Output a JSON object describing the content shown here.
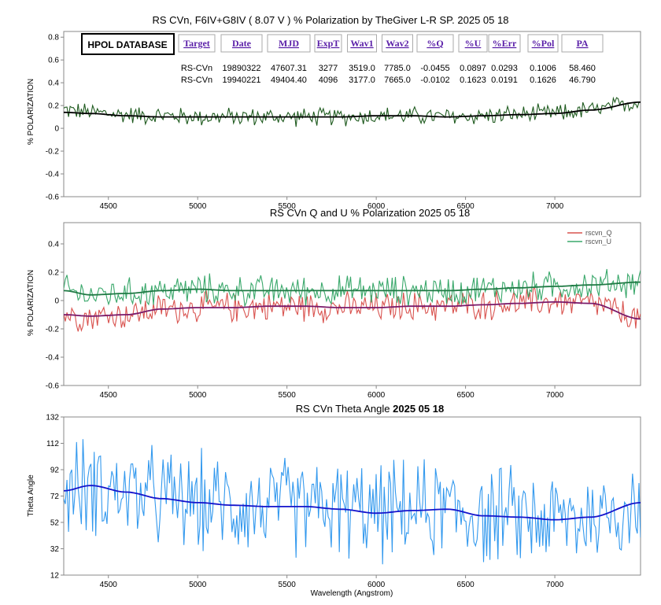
{
  "chart_data": [
    {
      "type": "line",
      "title": "RS CVn, F6IV+G8IV ( 8.07 V ) % Polarization by TheGiver L-R SP. 2025 05 18",
      "xlabel": "",
      "ylabel": "% POLARIZATION",
      "xlim": [
        4250,
        7480
      ],
      "ylim": [
        -0.6,
        0.85
      ],
      "x_ticks": [
        4500,
        5000,
        5500,
        6000,
        6500,
        7000
      ],
      "y_ticks": [
        -0.6,
        -0.4,
        -0.2,
        0,
        0.2,
        0.4,
        0.6,
        0.8
      ],
      "y_tick_labels": [
        "-0.6",
        "-0.4",
        "-0.2",
        "0",
        "0.2",
        "0.4",
        "0.6",
        "0.8"
      ],
      "grid": false,
      "series": [
        {
          "color": "#1f5b1f",
          "style": "noisy",
          "noise": 0.06,
          "x": [
            4250,
            4400,
            4600,
            4800,
            5000,
            5200,
            5400,
            5600,
            5800,
            6000,
            6200,
            6400,
            6600,
            6800,
            7000,
            7200,
            7480
          ],
          "y": [
            0.16,
            0.14,
            0.12,
            0.11,
            0.1,
            0.1,
            0.1,
            0.1,
            0.1,
            0.11,
            0.11,
            0.1,
            0.11,
            0.12,
            0.13,
            0.16,
            0.23
          ]
        },
        {
          "color": "#000000",
          "style": "smooth",
          "x": [
            4250,
            4400,
            4600,
            4800,
            5000,
            5200,
            5400,
            5600,
            5800,
            6000,
            6200,
            6400,
            6600,
            6800,
            7000,
            7200,
            7480
          ],
          "y": [
            0.14,
            0.13,
            0.11,
            0.1,
            0.1,
            0.1,
            0.1,
            0.1,
            0.1,
            0.11,
            0.11,
            0.1,
            0.11,
            0.12,
            0.13,
            0.16,
            0.23
          ]
        }
      ],
      "table": {
        "badge": "HPOL DATABASE",
        "headers": [
          "Target",
          "Date",
          "MJD",
          "ExpT",
          "Wav1",
          "Wav2",
          "%Q",
          "%U",
          "%Err",
          "%Pol",
          "PA"
        ],
        "rows": [
          [
            "RS-CVn",
            "19890322",
            "47607.31",
            "3277",
            "3519.0",
            "7785.0",
            "-0.0455",
            "0.0897",
            "0.0293",
            "0.1006",
            "58.460"
          ],
          [
            "RS-CVn",
            "19940221",
            "49404.40",
            "4096",
            "3177.0",
            "7665.0",
            "-0.0102",
            "0.1623",
            "0.0191",
            "0.1626",
            "46.790"
          ]
        ]
      }
    },
    {
      "type": "line",
      "title": "RS CVn  Q and U  % Polarization 2025 05 18",
      "xlabel": "",
      "ylabel": "% POLARIZATION",
      "xlim": [
        4250,
        7480
      ],
      "ylim": [
        -0.6,
        0.55
      ],
      "x_ticks": [
        4500,
        5000,
        5500,
        6000,
        6500,
        7000
      ],
      "y_ticks": [
        -0.6,
        -0.4,
        -0.2,
        0,
        0.2,
        0.4
      ],
      "y_tick_labels": [
        "-0.6",
        "-0.4",
        "-0.2",
        "0",
        "0.2",
        "0.4"
      ],
      "grid": false,
      "legend": "top-right",
      "series": [
        {
          "name": "rscvn_Q",
          "color": "#d9534f",
          "style": "noisy",
          "noise": 0.08,
          "x": [
            4250,
            4400,
            4600,
            4800,
            5000,
            5200,
            5400,
            5600,
            5800,
            6000,
            6200,
            6400,
            6600,
            6800,
            7000,
            7200,
            7480
          ],
          "y": [
            -0.1,
            -0.11,
            -0.1,
            -0.06,
            -0.05,
            -0.05,
            -0.04,
            -0.04,
            -0.05,
            -0.05,
            -0.04,
            -0.04,
            -0.03,
            -0.02,
            -0.01,
            -0.02,
            -0.13
          ]
        },
        {
          "name": "rscvn_U",
          "color": "#3aa86b",
          "style": "noisy",
          "noise": 0.08,
          "x": [
            4250,
            4400,
            4600,
            4800,
            5000,
            5200,
            5400,
            5600,
            5800,
            6000,
            6200,
            6400,
            6600,
            6800,
            7000,
            7200,
            7480
          ],
          "y": [
            0.07,
            0.04,
            0.05,
            0.07,
            0.08,
            0.07,
            0.07,
            0.07,
            0.07,
            0.07,
            0.07,
            0.07,
            0.08,
            0.09,
            0.1,
            0.11,
            0.13
          ]
        },
        {
          "color": "#1f7a44",
          "style": "smooth",
          "x": [
            4250,
            4400,
            4600,
            4800,
            5000,
            5200,
            5400,
            5600,
            5800,
            6000,
            6200,
            6400,
            6600,
            6800,
            7000,
            7200,
            7480
          ],
          "y": [
            0.07,
            0.04,
            0.05,
            0.07,
            0.08,
            0.07,
            0.07,
            0.07,
            0.07,
            0.07,
            0.07,
            0.07,
            0.08,
            0.09,
            0.1,
            0.11,
            0.13
          ]
        },
        {
          "color": "#7a1a6a",
          "style": "smooth",
          "x": [
            4250,
            4400,
            4600,
            4800,
            5000,
            5200,
            5400,
            5600,
            5800,
            6000,
            6200,
            6400,
            6600,
            6800,
            7000,
            7200,
            7480
          ],
          "y": [
            -0.1,
            -0.11,
            -0.1,
            -0.06,
            -0.05,
            -0.05,
            -0.04,
            -0.04,
            -0.05,
            -0.05,
            -0.04,
            -0.04,
            -0.03,
            -0.02,
            -0.01,
            -0.02,
            -0.13
          ]
        }
      ]
    },
    {
      "type": "line",
      "title_prefix": "RS CVn  Theta Angle ",
      "title_date": "2025 05 18",
      "xlabel": "Wavelength (Angstrom)",
      "ylabel": "Theta Angle",
      "xlim": [
        4250,
        7480
      ],
      "ylim": [
        12,
        132
      ],
      "x_ticks": [
        4500,
        5000,
        5500,
        6000,
        6500,
        7000
      ],
      "y_ticks": [
        12,
        32,
        52,
        72,
        92,
        112,
        132
      ],
      "y_tick_labels": [
        "12",
        "32",
        "52",
        "72",
        "92",
        "112",
        "132"
      ],
      "grid": false,
      "series": [
        {
          "color": "#3399ee",
          "style": "noisy",
          "noise": 28,
          "x": [
            4250,
            4400,
            4600,
            4800,
            5000,
            5200,
            5400,
            5600,
            5800,
            6000,
            6200,
            6400,
            6600,
            6800,
            7000,
            7200,
            7480
          ],
          "y": [
            76,
            80,
            75,
            70,
            67,
            65,
            64,
            64,
            62,
            59,
            61,
            62,
            57,
            56,
            54,
            56,
            67
          ]
        },
        {
          "color": "#1414cc",
          "style": "smooth",
          "x": [
            4250,
            4400,
            4600,
            4800,
            5000,
            5200,
            5400,
            5600,
            5800,
            6000,
            6200,
            6400,
            6600,
            6800,
            7000,
            7200,
            7480
          ],
          "y": [
            76,
            80,
            75,
            70,
            67,
            65,
            64,
            64,
            62,
            59,
            61,
            62,
            57,
            56,
            54,
            56,
            67
          ]
        }
      ]
    }
  ]
}
